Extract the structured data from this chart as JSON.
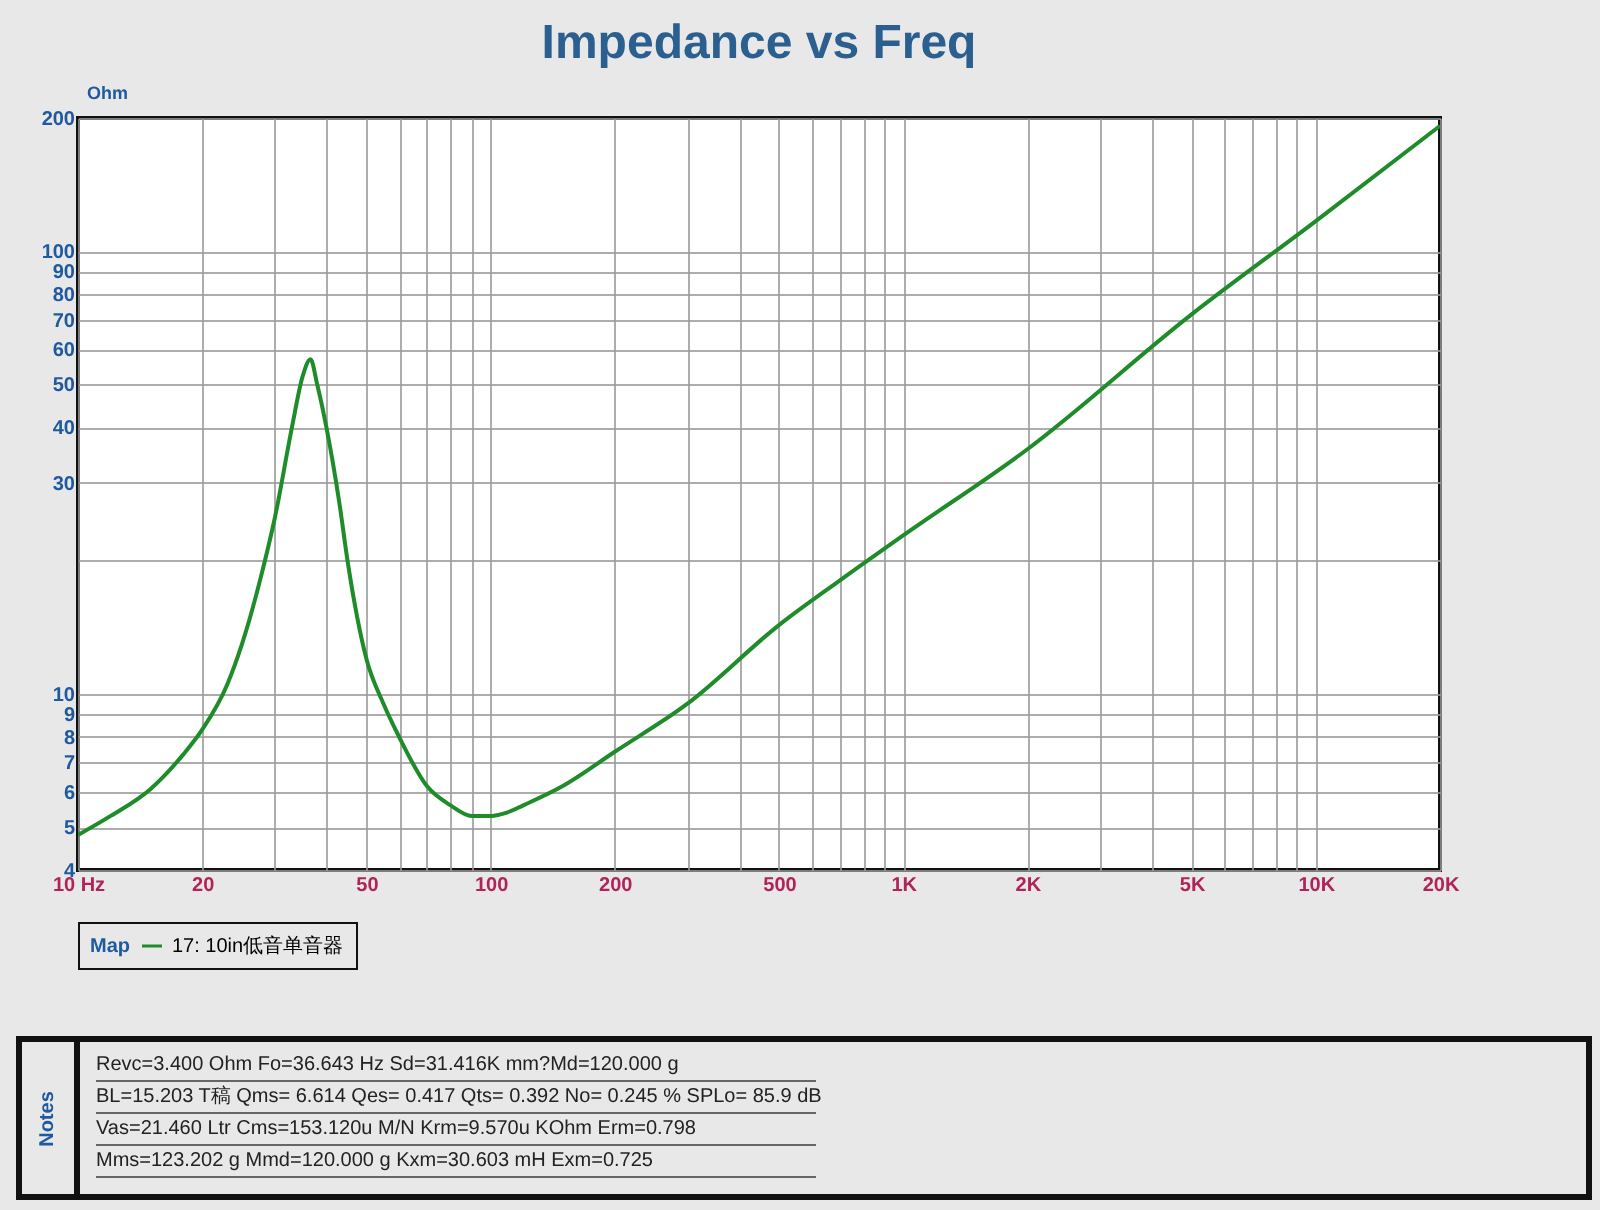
{
  "chart_data": {
    "type": "line",
    "title": "Impedance vs Freq",
    "ylabel": "Ohm",
    "legend_title": "Map",
    "legend": "bottom",
    "grid": true,
    "log": "xy",
    "xlim": [
      10,
      20000
    ],
    "ylim": [
      4,
      200
    ],
    "xticks": [
      {
        "value": 10,
        "label": "10  Hz"
      },
      20,
      {
        "value": 30,
        "label": null
      },
      {
        "value": 40,
        "label": null
      },
      50,
      {
        "value": 60,
        "label": null
      },
      {
        "value": 70,
        "label": null
      },
      {
        "value": 80,
        "label": null
      },
      {
        "value": 90,
        "label": null
      },
      100,
      200,
      {
        "value": 300,
        "label": null
      },
      {
        "value": 400,
        "label": null
      },
      500,
      {
        "value": 600,
        "label": null
      },
      {
        "value": 700,
        "label": null
      },
      {
        "value": 800,
        "label": null
      },
      {
        "value": 900,
        "label": null
      },
      {
        "value": 1000,
        "label": "1K"
      },
      {
        "value": 2000,
        "label": "2K"
      },
      {
        "value": 3000,
        "label": null
      },
      {
        "value": 4000,
        "label": null
      },
      {
        "value": 5000,
        "label": "5K"
      },
      {
        "value": 6000,
        "label": null
      },
      {
        "value": 7000,
        "label": null
      },
      {
        "value": 8000,
        "label": null
      },
      {
        "value": 9000,
        "label": null
      },
      {
        "value": 10000,
        "label": "10K"
      },
      {
        "value": 20000,
        "label": "20K"
      }
    ],
    "yticks": [
      4,
      5,
      6,
      7,
      8,
      9,
      10,
      {
        "value": 20,
        "label": null
      },
      30,
      40,
      50,
      60,
      70,
      80,
      90,
      100,
      200
    ],
    "series": [
      {
        "name": "17: 10in低音单音器",
        "color": "#1f8c2a",
        "x": [
          10,
          12,
          15,
          18,
          20,
          23,
          25,
          28,
          30,
          33,
          35,
          36.6,
          38,
          40,
          43,
          45,
          50,
          55,
          60,
          70,
          80,
          90,
          100,
          110,
          120,
          150,
          200,
          300,
          500,
          700,
          1000,
          2000,
          5000,
          10000,
          20000
        ],
        "values": [
          4.8,
          5.3,
          6.1,
          7.3,
          8.3,
          10.5,
          13,
          19,
          25,
          40,
          52,
          57,
          50,
          40,
          27,
          20,
          12,
          9.5,
          8,
          6.2,
          5.6,
          5.3,
          5.3,
          5.4,
          5.6,
          6.2,
          7.4,
          9.5,
          14.3,
          18,
          22.8,
          35.7,
          72,
          117,
          192
        ]
      }
    ],
    "annotations": [
      "Notes",
      "Revc=3.400 Ohm  Fo=36.643 Hz  Sd=31.416K mm?Md=120.000 g",
      "BL=15.203 T稿  Qms= 6.614  Qes= 0.417  Qts= 0.392  No= 0.245 %  SPLo= 85.9 dB",
      "Vas=21.460 Ltr  Cms=153.120u M/N  Krm=9.570u KOhm  Erm=0.798",
      "Mms=123.202 g  Mmd=120.000 g  Kxm=30.603 mH  Exm=0.725"
    ]
  }
}
